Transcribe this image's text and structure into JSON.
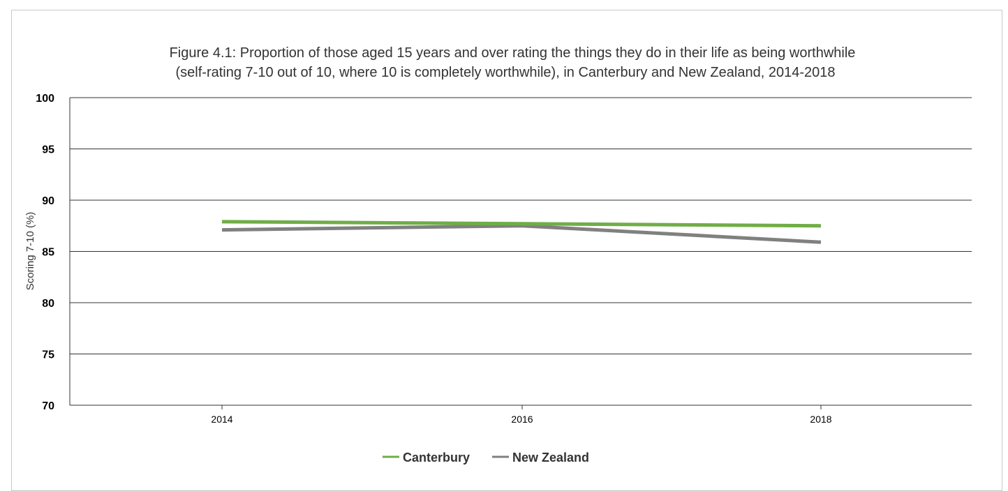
{
  "chart_data": {
    "type": "line",
    "title_lines": [
      "Figure 4.1: Proportion of those aged 15 years and over rating the things they do in their life as being worthwhile",
      "(self-rating 7-10 out of 10, where 10 is completely worthwhile), in Canterbury and New Zealand, 2014-2018"
    ],
    "xlabel": "",
    "ylabel": "Scoring 7-10 (%)",
    "categories": [
      "2014",
      "2016",
      "2018"
    ],
    "ylim": [
      70,
      100
    ],
    "yticks": [
      70,
      75,
      80,
      85,
      90,
      95,
      100
    ],
    "grid": "horizontal",
    "legend_position": "bottom",
    "series": [
      {
        "name": "Canterbury",
        "color": "#70ad47",
        "values": [
          87.9,
          87.7,
          87.5
        ]
      },
      {
        "name": "New Zealand",
        "color": "#808080",
        "values": [
          87.1,
          87.5,
          85.9
        ]
      }
    ]
  }
}
